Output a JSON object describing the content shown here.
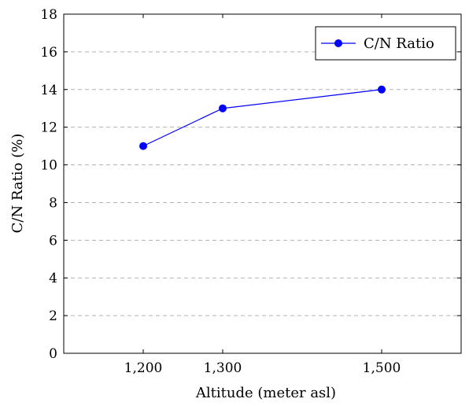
{
  "chart_data": {
    "type": "line",
    "x": [
      1200,
      1300,
      1500
    ],
    "x_tick_labels": [
      "1,200",
      "1,300",
      "1,500"
    ],
    "xlim": [
      1100,
      1600
    ],
    "ylim": [
      0,
      18
    ],
    "y_ticks": [
      0,
      2,
      4,
      6,
      8,
      10,
      12,
      14,
      16,
      18
    ],
    "xlabel": "Altitude (meter asl)",
    "ylabel": "C/N Ratio (%)",
    "series": [
      {
        "name": "C/N Ratio",
        "values": [
          11,
          13,
          14
        ],
        "color": "#0000ff",
        "marker": "circle"
      }
    ],
    "grid": "horizontal-dashed",
    "legend": "top-right"
  }
}
